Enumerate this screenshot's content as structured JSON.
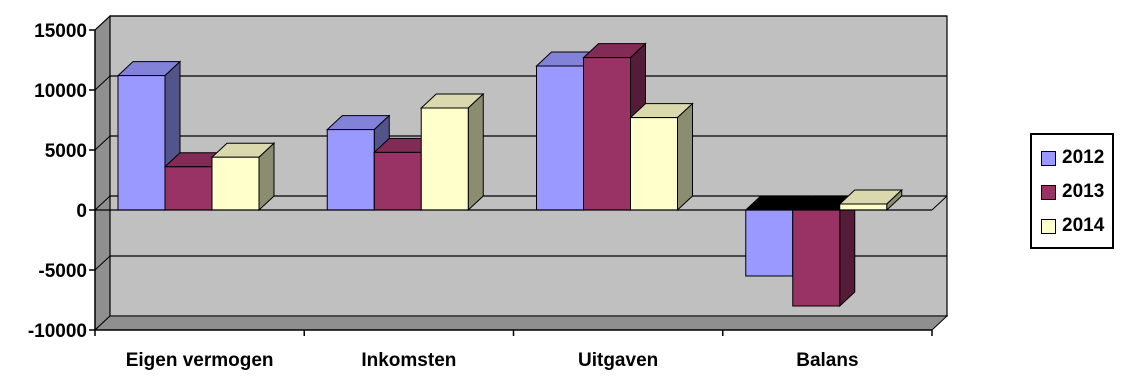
{
  "chart_data": {
    "type": "bar",
    "categories": [
      "Eigen vermogen",
      "Inkomsten",
      "Uitgaven",
      "Balans"
    ],
    "series": [
      {
        "name": "2012",
        "color": "#9999FF",
        "values": [
          11200,
          6700,
          12000,
          -5500
        ]
      },
      {
        "name": "2013",
        "color": "#993366",
        "values": [
          3600,
          4800,
          12700,
          -8000
        ]
      },
      {
        "name": "2014",
        "color": "#FFFFCC",
        "values": [
          4400,
          8500,
          7700,
          500
        ]
      }
    ],
    "yticks": [
      "15000",
      "10000",
      "5000",
      "0",
      "-5000",
      "-10000"
    ],
    "ylim": [
      -10000,
      15000
    ],
    "grid": true,
    "legend_position": "right",
    "plot_background": "#C0C0C0"
  }
}
